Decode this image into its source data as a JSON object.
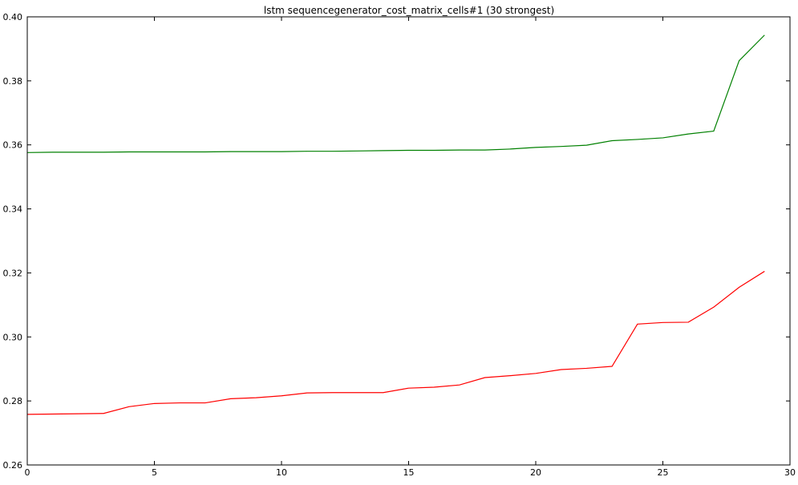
{
  "chart_data": {
    "type": "line",
    "title": "lstm sequencegenerator_cost_matrix_cells#1 (30 strongest)",
    "xlabel": "",
    "ylabel": "",
    "xlim": [
      0,
      30
    ],
    "ylim": [
      0.26,
      0.4
    ],
    "xticks": [
      0,
      5,
      10,
      15,
      20,
      25,
      30
    ],
    "xtick_labels": [
      "0",
      "5",
      "10",
      "15",
      "20",
      "25",
      "30"
    ],
    "yticks": [
      0.26,
      0.28,
      0.3,
      0.32,
      0.34,
      0.36,
      0.38,
      0.4
    ],
    "ytick_labels": [
      "0.26",
      "0.28",
      "0.30",
      "0.32",
      "0.34",
      "0.36",
      "0.38",
      "0.40"
    ],
    "grid": false,
    "x": [
      0,
      1,
      2,
      3,
      4,
      5,
      6,
      7,
      8,
      9,
      10,
      11,
      12,
      13,
      14,
      15,
      16,
      17,
      18,
      19,
      20,
      21,
      22,
      23,
      24,
      25,
      26,
      27,
      28,
      29
    ],
    "series": [
      {
        "color": "#008000",
        "values": [
          0.3576,
          0.3577,
          0.3577,
          0.3577,
          0.3578,
          0.3578,
          0.3578,
          0.3578,
          0.3579,
          0.3579,
          0.3579,
          0.358,
          0.358,
          0.3581,
          0.3582,
          0.3583,
          0.3583,
          0.3584,
          0.3584,
          0.3587,
          0.3592,
          0.3595,
          0.3599,
          0.3613,
          0.3617,
          0.3622,
          0.3634,
          0.3643,
          0.3863,
          0.3943
        ]
      },
      {
        "color": "#ff0000",
        "values": [
          0.2758,
          0.2759,
          0.276,
          0.2761,
          0.2782,
          0.2792,
          0.2794,
          0.2794,
          0.2807,
          0.281,
          0.2816,
          0.2825,
          0.2826,
          0.2826,
          0.2826,
          0.284,
          0.2843,
          0.285,
          0.2873,
          0.2879,
          0.2886,
          0.2898,
          0.2902,
          0.2908,
          0.304,
          0.3045,
          0.3046,
          0.3093,
          0.3155,
          0.3205
        ]
      }
    ]
  }
}
